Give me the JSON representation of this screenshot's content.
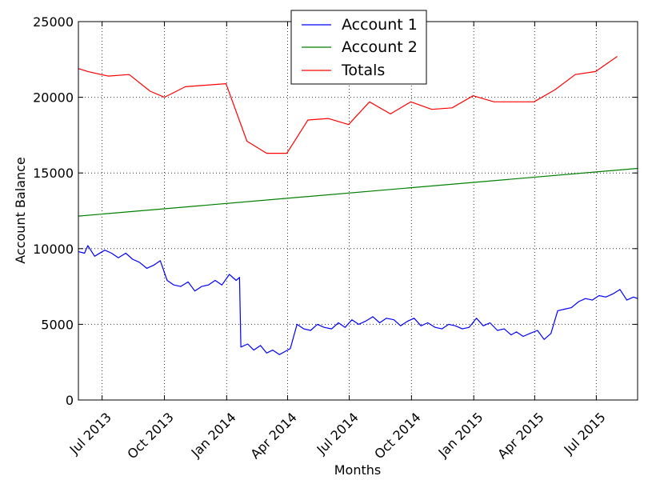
{
  "chart_data": {
    "type": "line",
    "xlabel": "Months",
    "ylabel": "Account Balance",
    "ylim": [
      0,
      25000
    ],
    "xlim": [
      "2013-05-27",
      "2015-08-31"
    ],
    "grid": true,
    "legend_position": "top-center",
    "x_ticks": [
      {
        "date": "2013-07-01",
        "label": "Jul 2013"
      },
      {
        "date": "2013-10-01",
        "label": "Oct 2013"
      },
      {
        "date": "2014-01-01",
        "label": "Jan 2014"
      },
      {
        "date": "2014-04-01",
        "label": "Apr 2014"
      },
      {
        "date": "2014-07-01",
        "label": "Jul 2014"
      },
      {
        "date": "2014-10-01",
        "label": "Oct 2014"
      },
      {
        "date": "2015-01-01",
        "label": "Jan 2015"
      },
      {
        "date": "2015-04-01",
        "label": "Apr 2015"
      },
      {
        "date": "2015-07-01",
        "label": "Jul 2015"
      }
    ],
    "y_ticks": [
      0,
      5000,
      10000,
      15000,
      20000,
      25000
    ],
    "y_tick_labels": [
      "0",
      "5000",
      "10000",
      "15000",
      "20000",
      "25000"
    ],
    "series": [
      {
        "name": "Account 1",
        "color": "#0000ff",
        "x": [
          "2013-05-27",
          "2013-06-05",
          "2013-06-10",
          "2013-06-20",
          "2013-07-05",
          "2013-07-15",
          "2013-07-25",
          "2013-08-05",
          "2013-08-15",
          "2013-08-25",
          "2013-09-05",
          "2013-09-15",
          "2013-09-25",
          "2013-10-05",
          "2013-10-15",
          "2013-10-25",
          "2013-11-05",
          "2013-11-15",
          "2013-11-25",
          "2013-12-05",
          "2013-12-15",
          "2013-12-25",
          "2014-01-05",
          "2014-01-15",
          "2014-01-20",
          "2014-01-22",
          "2014-02-01",
          "2014-02-10",
          "2014-02-20",
          "2014-03-01",
          "2014-03-10",
          "2014-03-20",
          "2014-03-28",
          "2014-04-05",
          "2014-04-15",
          "2014-04-25",
          "2014-05-05",
          "2014-05-15",
          "2014-05-25",
          "2014-06-05",
          "2014-06-15",
          "2014-06-25",
          "2014-07-05",
          "2014-07-15",
          "2014-07-25",
          "2014-08-05",
          "2014-08-15",
          "2014-08-25",
          "2014-09-05",
          "2014-09-15",
          "2014-09-25",
          "2014-10-05",
          "2014-10-15",
          "2014-10-25",
          "2014-11-05",
          "2014-11-15",
          "2014-11-25",
          "2014-12-05",
          "2014-12-15",
          "2014-12-25",
          "2015-01-05",
          "2015-01-15",
          "2015-01-25",
          "2015-02-05",
          "2015-02-15",
          "2015-02-25",
          "2015-03-05",
          "2015-03-15",
          "2015-03-25",
          "2015-04-05",
          "2015-04-15",
          "2015-04-25",
          "2015-05-05",
          "2015-05-15",
          "2015-05-25",
          "2015-06-05",
          "2015-06-15",
          "2015-06-25",
          "2015-07-05",
          "2015-07-15",
          "2015-07-25",
          "2015-08-05",
          "2015-08-15",
          "2015-08-25",
          "2015-08-31"
        ],
        "values": [
          9800,
          9700,
          10200,
          9500,
          9900,
          9700,
          9400,
          9700,
          9300,
          9100,
          8700,
          8900,
          9200,
          7900,
          7600,
          7500,
          7800,
          7200,
          7500,
          7600,
          7900,
          7600,
          8300,
          7900,
          8100,
          3500,
          3700,
          3300,
          3600,
          3100,
          3300,
          3000,
          3200,
          3400,
          5000,
          4700,
          4600,
          5000,
          4800,
          4700,
          5100,
          4800,
          5300,
          5000,
          5200,
          5500,
          5100,
          5400,
          5300,
          4900,
          5200,
          5400,
          4900,
          5100,
          4800,
          4700,
          5000,
          4900,
          4700,
          4800,
          5400,
          4900,
          5100,
          4600,
          4700,
          4300,
          4500,
          4200,
          4400,
          4600,
          4000,
          4400,
          5900,
          6000,
          6100,
          6500,
          6700,
          6600,
          6900,
          6800,
          7000,
          7300,
          6600,
          6800,
          6700
        ]
      },
      {
        "name": "Account 2",
        "color": "#008000",
        "x": [
          "2013-05-27",
          "2015-08-31"
        ],
        "values": [
          12150,
          15300
        ]
      },
      {
        "name": "Totals",
        "color": "#ff0000",
        "x": [
          "2013-05-27",
          "2013-06-10",
          "2013-07-10",
          "2013-08-10",
          "2013-09-10",
          "2013-10-01",
          "2013-11-01",
          "2013-12-01",
          "2013-12-31",
          "2014-01-31",
          "2014-03-01",
          "2014-03-31",
          "2014-05-01",
          "2014-05-31",
          "2014-06-30",
          "2014-07-31",
          "2014-08-31",
          "2014-09-30",
          "2014-10-31",
          "2014-11-30",
          "2014-12-31",
          "2015-01-31",
          "2015-03-01",
          "2015-03-31",
          "2015-05-01",
          "2015-05-31",
          "2015-06-30",
          "2015-08-01"
        ],
        "values": [
          21900,
          21700,
          21400,
          21500,
          20400,
          20000,
          20700,
          20800,
          20900,
          17100,
          16300,
          16300,
          18500,
          18600,
          18200,
          19700,
          18900,
          19700,
          19200,
          19300,
          20100,
          19700,
          19700,
          19700,
          20500,
          21500,
          21700,
          22700
        ]
      }
    ]
  }
}
